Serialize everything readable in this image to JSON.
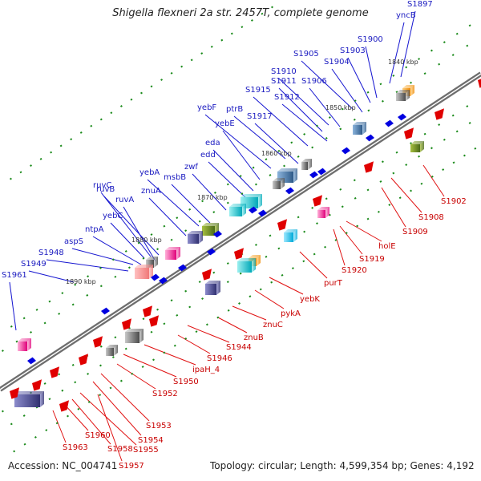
{
  "title": "Shigella flexneri 2a str. 2457T, complete genome",
  "accession_text": "Accession: NC_004741",
  "topology_text": "Topology: circular; Length: 4,599,354 bp; Genes: 4,192",
  "scale_labels": [
    "1840 kbp",
    "1850 kbp",
    "1860 kbp",
    "1870 kbp",
    "1880 kbp",
    "1890 kbp"
  ],
  "forward_genes": [
    "S1897",
    "yncB",
    "S1900",
    "S1903",
    "S1905",
    "S1904",
    "S1910",
    "S1911",
    "S1906",
    "S1915",
    "S1912",
    "ptrB",
    "S1917",
    "yebF",
    "yebE",
    "eda",
    "edd",
    "zwf",
    "msbB",
    "yebA",
    "znuA",
    "ruvB",
    "ruvC",
    "ruvA",
    "yebC",
    "ntpA",
    "aspS",
    "S1948",
    "S1949",
    "S1961"
  ],
  "reverse_genes": [
    "S1902",
    "S1908",
    "S1909",
    "holE",
    "S1919",
    "S1920",
    "purT",
    "yebK",
    "pykA",
    "znuC",
    "znuB",
    "S1944",
    "S1946",
    "ipaH_4",
    "S1950",
    "S1952",
    "S1953",
    "S1954",
    "S1955",
    "S1958",
    "S1957",
    "S1960",
    "S1963"
  ],
  "colors": {
    "forward": "#0000e0",
    "reverse": "#e00000",
    "backbone": "#6e6e6e",
    "tick": "#1a8a1a"
  }
}
